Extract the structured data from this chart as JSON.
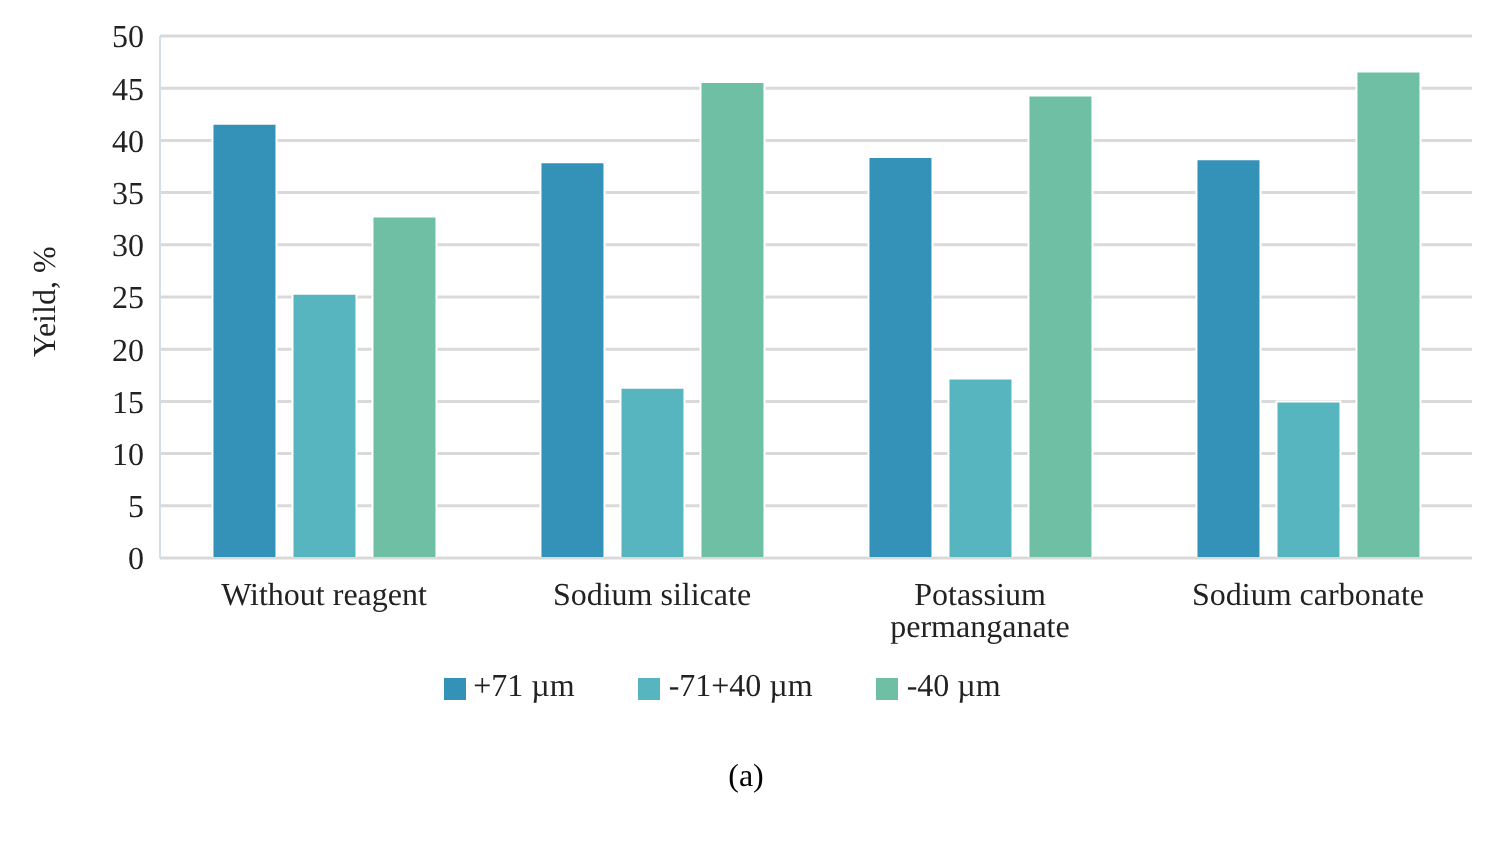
{
  "chart_data": {
    "type": "bar",
    "ylabel": "Yeild, %",
    "categories": [
      "Without reagent",
      "Sodium silicate",
      "Potassium permanganate",
      "Sodium carbonate"
    ],
    "series": [
      {
        "name": "+71 µm",
        "color": "#3492b9",
        "values": [
          41.6,
          37.9,
          38.4,
          38.2
        ]
      },
      {
        "name": "-71+40 µm",
        "color": "#56b5be",
        "values": [
          25.3,
          16.3,
          17.2,
          15.0
        ]
      },
      {
        "name": "-40 µm",
        "color": "#6fbfa5",
        "values": [
          32.7,
          45.6,
          44.3,
          46.6
        ]
      }
    ],
    "ylim": [
      0,
      50
    ],
    "yticks": [
      0,
      5,
      10,
      15,
      20,
      25,
      30,
      35,
      40,
      45,
      50
    ],
    "grid": "y",
    "legend": "bottom",
    "annotations": [
      "(a)"
    ]
  }
}
